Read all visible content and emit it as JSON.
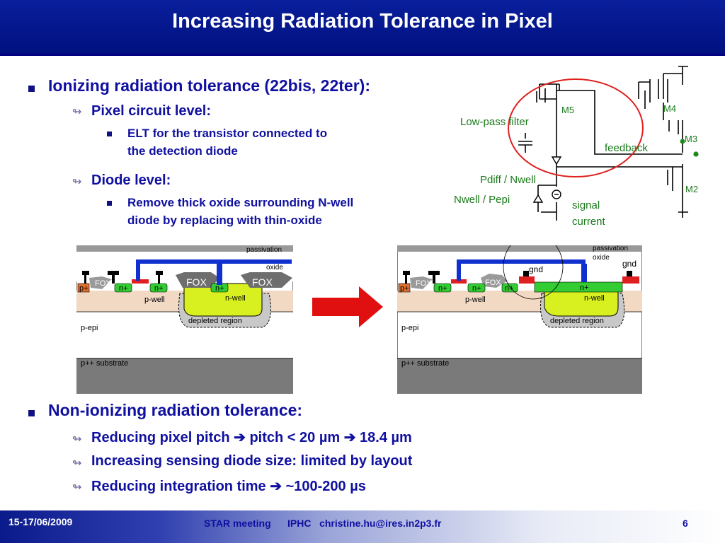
{
  "title": "Increasing Radiation Tolerance in Pixel",
  "ionizing": {
    "heading": "Ionizing radiation tolerance (22bis, 22ter):",
    "pixel_level": "Pixel circuit level:",
    "elt_line1": "ELT for the transistor connected to",
    "elt_line2": "the detection diode",
    "diode_level": "Diode level:",
    "remove_line1": "Remove thick oxide surrounding N-well",
    "remove_line2": "diode by replacing with thin-oxide"
  },
  "circuit": {
    "m5": "M5",
    "m4": "M4",
    "m3": "M3",
    "m2": "M2",
    "lowpass": "Low-pass filter",
    "feedback": "feedback",
    "pdiff": "Pdiff / Nwell",
    "nwell": "Nwell / Pepi",
    "signal": "signal",
    "current": "current"
  },
  "cross_left": {
    "passivation": "passivation",
    "oxide": "oxide",
    "fox": "FOX",
    "p_plus": "p+",
    "n_plus": "n+",
    "p_well": "p-well",
    "n_well": "n-well",
    "depleted": "depleted region",
    "p_epi": "p-epi",
    "substrate": "p++ substrate"
  },
  "cross_right": {
    "passivation": "passivation",
    "oxide": "oxide",
    "gnd": "gnd",
    "fox": "FOX",
    "p_plus": "p+",
    "n_plus": "n+",
    "p_well": "p-well",
    "n_well": "n-well",
    "depleted": "depleted region",
    "p_epi": "p-epi",
    "substrate": "p++ substrate"
  },
  "non_ionizing": {
    "heading": "Non-ionizing radiation tolerance:",
    "pitch_a": "Reducing pixel pitch",
    "pitch_b": "pitch < 20 µm",
    "pitch_c": "18.4 µm",
    "diode": "Increasing sensing diode size: limited by layout",
    "integ_a": "Reducing integration time",
    "integ_b": "~100-200 µs"
  },
  "footer": {
    "date": "15-17/06/2009",
    "meeting": "STAR meeting      IPHC   christine.hu@ires.in2p3.fr",
    "page": "6"
  },
  "colors": {
    "title_bg": "#001080",
    "text_blue": "#1010a0",
    "circuit_green": "#1a7a1a",
    "highlight_red": "#e02020",
    "nwell_yellow": "#d8f020",
    "n_plus_green": "#33cc33",
    "metal_blue": "#1030d0",
    "p_well_tan": "#f2d9c4",
    "substrate_grey": "#7a7a7a"
  },
  "icons": [
    "square-bullet",
    "arrow-bullet",
    "right-arrow",
    "big-red-arrow"
  ]
}
